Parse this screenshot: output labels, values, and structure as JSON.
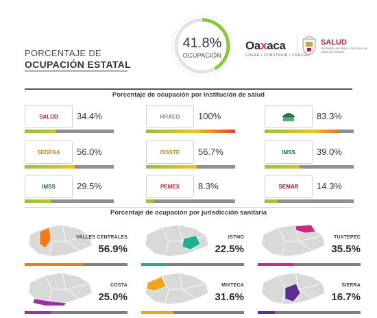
{
  "header": {
    "title_line1": "PORCENTAJE DE",
    "title_line2": "OCUPACIÓN ESTATAL",
    "occupancy": {
      "value": 41.8,
      "label": "41.8%",
      "caption": "OCUPACIÓN"
    },
    "logo_oaxaca": {
      "word_start": "Oa",
      "word_x": "x",
      "word_end": "aca",
      "tagline": "CREAR • CONSTRUIR • CRECER"
    },
    "logo_salud": {
      "word": "SALUD",
      "sub": "Secretaría de Salud / Servicios de Salud de Oaxaca"
    }
  },
  "institutions_section": {
    "title": "Porcentaje de ocupación por institución de salud",
    "items": [
      {
        "logo": "SALUD",
        "value": 34.4,
        "label": "34.4%",
        "logo_color": "#b11f3a"
      },
      {
        "logo": "HRAEO",
        "value": 100,
        "label": "100%",
        "logo_color": "#8a8a8a"
      },
      {
        "logo": "",
        "value": 83.3,
        "label": "83.3%",
        "logo_color": "#1a7a3a"
      },
      {
        "logo": "SEDENA",
        "value": 56.0,
        "label": "56.0%",
        "logo_color": "#b8862f"
      },
      {
        "logo": "ISSSTE",
        "value": 56.7,
        "label": "56.7%",
        "logo_color": "#b8862f"
      },
      {
        "logo": "IMSS",
        "value": 39.0,
        "label": "39.0%",
        "logo_color": "#1c6b3f"
      },
      {
        "logo": "IMSS",
        "value": 29.5,
        "label": "29.5%",
        "logo_color": "#1c6b3f"
      },
      {
        "logo": "PEMEX",
        "value": 8.3,
        "label": "8.3%",
        "logo_color": "#c0272d"
      },
      {
        "logo": "SEMAR",
        "value": 14.3,
        "label": "14.3%",
        "logo_color": "#7a1f2b"
      }
    ]
  },
  "regions_section": {
    "title": "Porcentaje de ocupación por jurisdicción sanitaria",
    "items": [
      {
        "name": "VALLES CENTRALES",
        "value": 56.9,
        "label": "56.9%",
        "color": "#f07a1a"
      },
      {
        "name": "ISTMO",
        "value": 22.5,
        "label": "22.5%",
        "color": "#1fae8f"
      },
      {
        "name": "TUXTEPEC",
        "value": 35.5,
        "label": "35.5%",
        "color": "#c42a86"
      },
      {
        "name": "COSTA",
        "value": 25.0,
        "label": "25.0%",
        "color": "#9b2fa5"
      },
      {
        "name": "MIXTECA",
        "value": 31.6,
        "label": "31.6%",
        "color": "#f1a31b"
      },
      {
        "name": "SIERRA",
        "value": 16.7,
        "label": "16.7%",
        "color": "#5a2f94"
      }
    ]
  },
  "colors": {
    "bar_low": "#8cc63f",
    "bar_mid": "#f2c21a",
    "bar_high": "#e2452c",
    "bar_track": "#8f8f8f",
    "donut_track": "#e3e3e3",
    "donut_fill": "#8cc63f"
  }
}
